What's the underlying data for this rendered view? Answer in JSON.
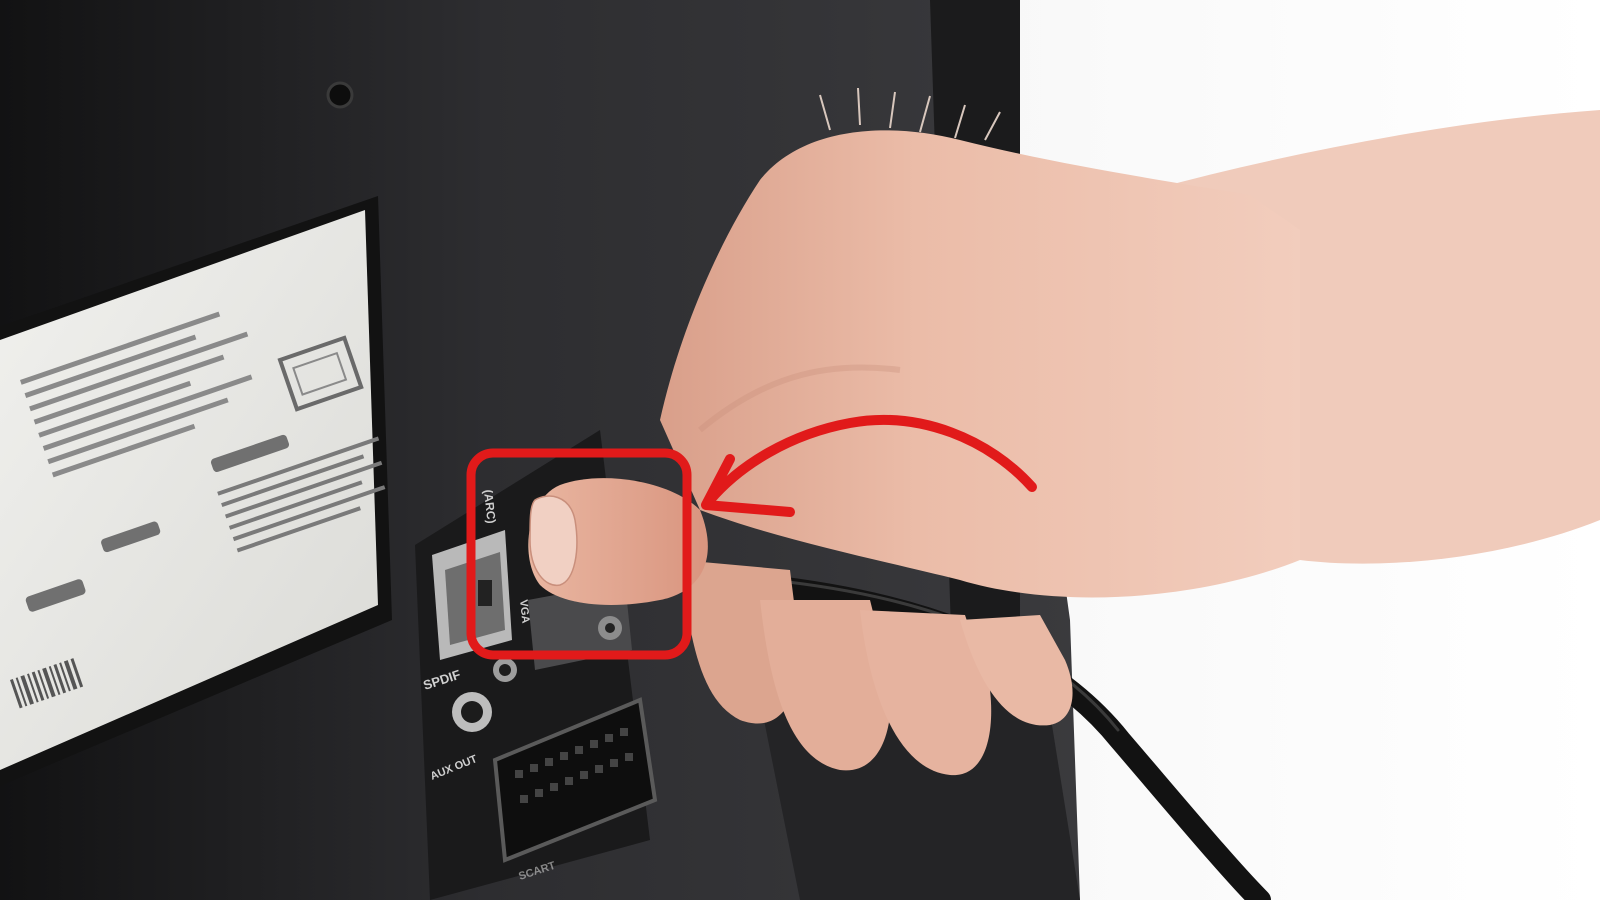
{
  "scene": {
    "description_name": "tv-rear-panel-hdmi-arc",
    "colors": {
      "background": "#ffffff",
      "tv_back": "#2a2a2c",
      "tv_back_dark": "#161617",
      "sticker": "#e9e9e6",
      "skin": "#e7b7a2",
      "skin_shadow": "#c98f7c",
      "cable": "#151515",
      "highlight_red": "#e11a1a"
    }
  },
  "labels": {
    "arc": "(ARC)",
    "vga": "VGA",
    "spdif": "SPDIF",
    "aux_out": "AUX OUT",
    "scart": "SCART"
  },
  "annotation": {
    "box_target": "hdmi-arc-port",
    "arrow_direction": "left"
  }
}
